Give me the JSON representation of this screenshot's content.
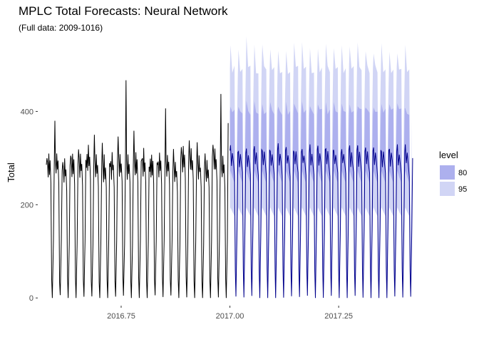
{
  "chart_data": {
    "type": "line",
    "title": "MPLC Total Forecasts: Neural Network",
    "subtitle": "(Full data: 2009-1016)",
    "xlabel": "",
    "ylabel": "Total",
    "x_ticks": [
      2016.75,
      2017.0,
      2017.25
    ],
    "x_tick_labels": [
      "2016.75",
      "2017.00",
      "2017.25"
    ],
    "y_ticks": [
      0,
      200,
      400
    ],
    "y_tick_labels": [
      "0",
      "200",
      "400"
    ],
    "xlim": [
      2016.56,
      2017.43
    ],
    "ylim": [
      -15,
      555
    ],
    "grid": false,
    "legend": {
      "title": "level",
      "position": "right",
      "entries": [
        {
          "label": "80",
          "color": "#adb0ee"
        },
        {
          "label": "95",
          "color": "#d1d5f5"
        }
      ]
    },
    "colors": {
      "history": "#000000",
      "forecast": "#00008b",
      "interval_80": "#adb0ee",
      "interval_95": "#d1d5f5"
    },
    "history": {
      "start": 2016.578,
      "end": 2016.996,
      "cycles": 23,
      "baseline": 285,
      "peaks": [
        305,
        380,
        285,
        310,
        315,
        280,
        345,
        330,
        280,
        350,
        470,
        360,
        300,
        270,
        280,
        400,
        320,
        330,
        340,
        340,
        305,
        330,
        440
      ],
      "minimum": 0
    },
    "forecast": {
      "start": 2017.0,
      "end": 2017.42,
      "cycles": 23,
      "mean_level": 295,
      "mean_peak": 320,
      "minimum": 0,
      "interval_80": {
        "lower": 260,
        "upper": 400
      },
      "interval_95": {
        "lower": 185,
        "upper": 490
      },
      "interval_95_peak": 555
    }
  }
}
